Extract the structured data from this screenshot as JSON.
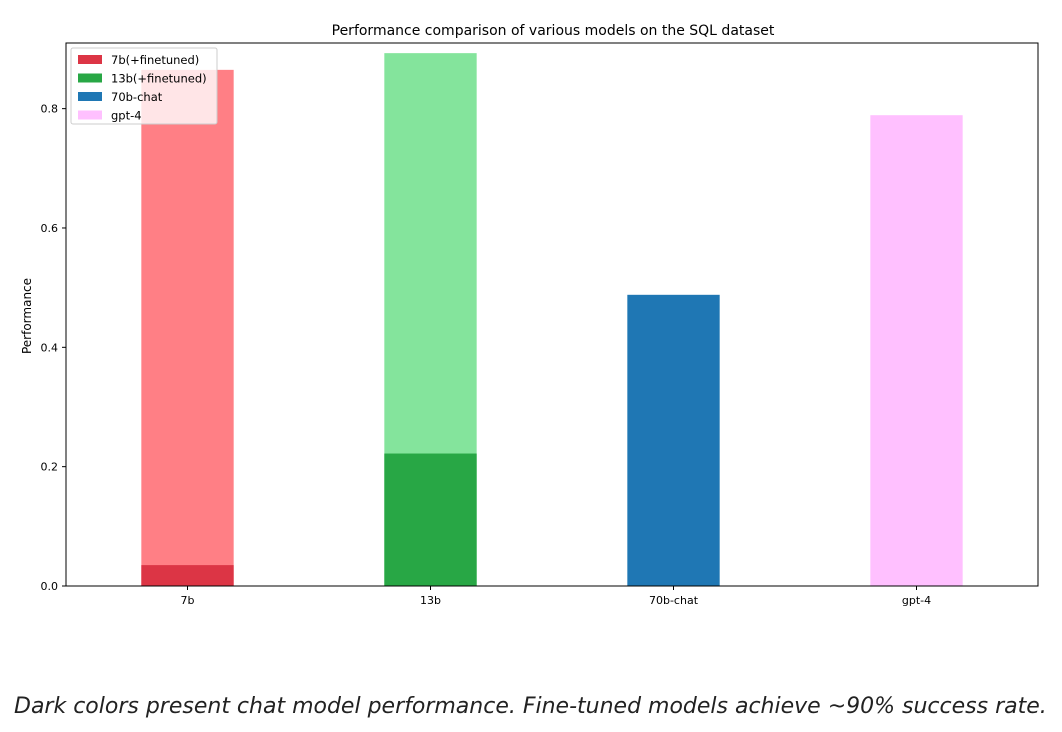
{
  "chart_data": {
    "type": "bar",
    "title": "Performance comparison of various models on the SQL dataset",
    "ylabel": "Performance",
    "xlabel": "",
    "categories": [
      "7b",
      "13b",
      "70b-chat",
      "gpt-4"
    ],
    "ylim": [
      0,
      0.91
    ],
    "yticks": [
      "0.0",
      "0.2",
      "0.4",
      "0.6",
      "0.8"
    ],
    "grid": false,
    "legend_position": "top-left",
    "bars": [
      {
        "category": "7b",
        "chat": 0.035,
        "finetuned": 0.865,
        "chat_color": "#dc3545",
        "finetuned_color": "#ff7f85"
      },
      {
        "category": "13b",
        "chat": 0.222,
        "finetuned": 0.893,
        "chat_color": "#28a745",
        "finetuned_color": "#84e49c"
      },
      {
        "category": "70b-chat",
        "chat": 0.488,
        "finetuned": null,
        "chat_color": "#1f77b4",
        "finetuned_color": null
      },
      {
        "category": "gpt-4",
        "chat": 0.789,
        "finetuned": null,
        "chat_color": "#ffc0ff",
        "finetuned_color": null
      }
    ],
    "legend": [
      {
        "label": "7b(+finetuned)",
        "color": "#dc3545"
      },
      {
        "label": "13b(+finetuned)",
        "color": "#28a745"
      },
      {
        "label": "70b-chat",
        "color": "#1f77b4"
      },
      {
        "label": "gpt-4",
        "color": "#ffc0ff"
      }
    ]
  },
  "caption": "Dark colors present chat model performance. Fine-tuned models achieve ~90% success rate."
}
